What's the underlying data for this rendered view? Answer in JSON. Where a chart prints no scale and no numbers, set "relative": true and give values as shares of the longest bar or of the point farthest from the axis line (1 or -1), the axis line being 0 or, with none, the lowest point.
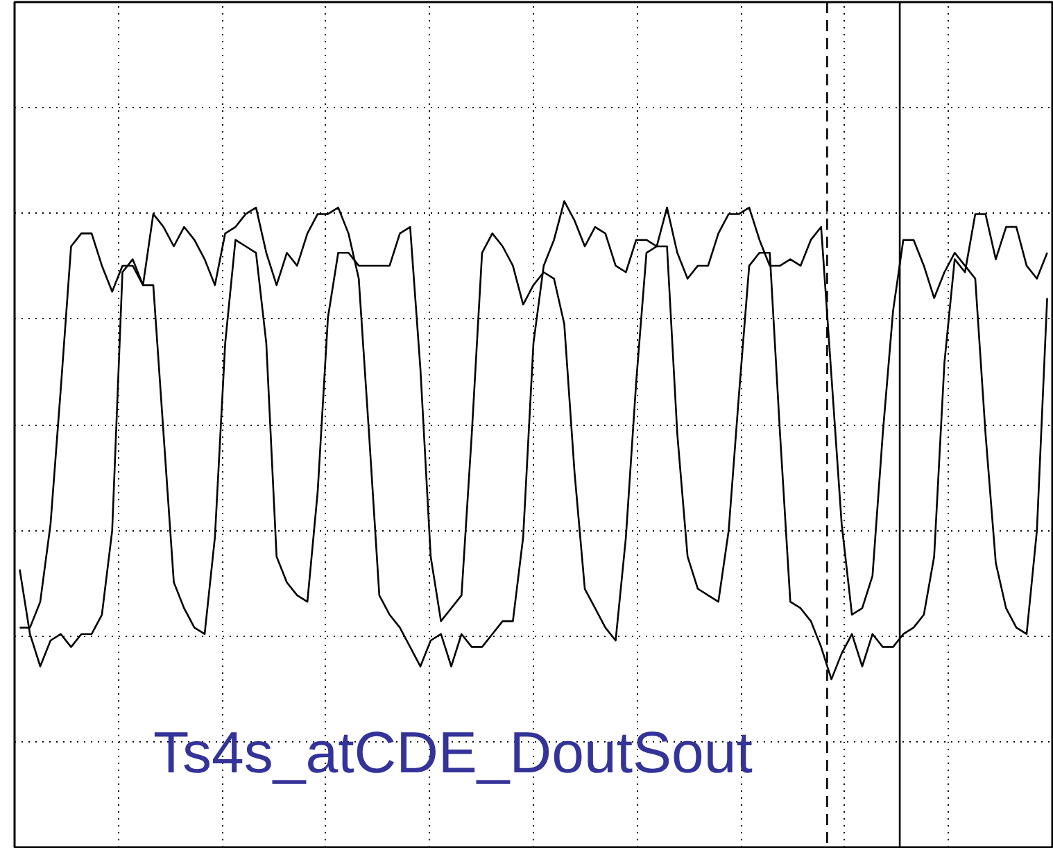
{
  "chart_data": {
    "type": "line",
    "relative": true,
    "grid": true,
    "tick_labels": false,
    "marker": "none",
    "line_style": "solid",
    "categories": [
      null,
      null,
      null,
      null,
      null,
      null,
      null,
      null,
      null,
      null,
      null,
      null,
      null,
      null,
      null,
      null,
      null,
      null,
      null,
      null,
      null,
      null,
      null,
      null,
      null,
      null,
      null,
      null,
      null,
      null,
      null,
      null,
      null,
      null,
      null,
      null,
      null,
      null,
      null,
      null,
      null,
      null,
      null,
      null,
      null,
      null,
      null,
      null,
      null,
      null,
      null,
      null,
      null,
      null,
      null,
      null,
      null,
      null,
      null,
      null,
      null,
      null,
      null,
      null,
      null,
      null,
      null,
      null,
      null,
      null,
      null,
      null,
      null,
      null,
      null,
      null,
      null,
      null,
      null,
      null,
      null,
      null,
      null,
      null,
      null,
      null,
      null,
      null,
      null,
      null,
      null,
      null,
      null,
      null,
      null,
      null,
      null,
      null,
      null,
      null,
      null
    ],
    "annotations": [
      "Ts4s_atCDE_DoutSout"
    ],
    "series": [
      {
        "color": "#000000",
        "values": [
          0.34,
          0.34,
          0.38,
          0.5,
          0.71,
          0.93,
          0.95,
          0.95,
          0.9,
          0.86,
          0.9,
          0.9,
          0.87,
          0.87,
          0.64,
          0.41,
          0.37,
          0.34,
          0.33,
          0.48,
          0.78,
          0.94,
          0.93,
          0.92,
          0.78,
          0.45,
          0.41,
          0.39,
          0.38,
          0.55,
          0.82,
          0.92,
          0.92,
          0.9,
          0.9,
          0.9,
          0.9,
          0.95,
          0.96,
          0.74,
          0.45,
          0.35,
          0.37,
          0.39,
          0.64,
          0.92,
          0.95,
          0.93,
          0.9,
          0.84,
          0.87,
          0.89,
          0.88,
          0.81,
          0.58,
          0.4,
          0.37,
          0.34,
          0.32,
          0.48,
          0.72,
          0.92,
          0.93,
          0.93,
          0.64,
          0.45,
          0.4,
          0.39,
          0.38,
          0.49,
          0.7,
          0.9,
          0.92,
          0.92,
          0.64,
          0.38,
          0.37,
          0.35,
          0.31,
          0.26,
          0.3,
          0.33,
          0.28,
          0.33,
          0.31,
          0.31,
          0.33,
          0.34,
          0.36,
          0.45,
          0.75,
          0.91,
          0.89,
          0.98,
          0.98,
          0.91,
          0.96,
          0.96,
          0.9,
          0.88,
          0.92
        ]
      },
      {
        "color": "#000000",
        "values": [
          0.43,
          0.33,
          0.28,
          0.32,
          0.33,
          0.31,
          0.33,
          0.33,
          0.36,
          0.49,
          0.89,
          0.91,
          0.87,
          0.98,
          0.96,
          0.93,
          0.96,
          0.94,
          0.91,
          0.87,
          0.95,
          0.96,
          0.98,
          0.99,
          0.92,
          0.87,
          0.92,
          0.9,
          0.95,
          0.98,
          0.98,
          0.99,
          0.95,
          0.88,
          0.64,
          0.39,
          0.36,
          0.34,
          0.31,
          0.28,
          0.32,
          0.33,
          0.28,
          0.33,
          0.31,
          0.31,
          0.33,
          0.35,
          0.35,
          0.48,
          0.78,
          0.9,
          0.94,
          1.0,
          0.97,
          0.93,
          0.96,
          0.95,
          0.9,
          0.89,
          0.94,
          0.94,
          0.93,
          0.99,
          0.92,
          0.88,
          0.9,
          0.9,
          0.95,
          0.98,
          0.98,
          0.99,
          0.94,
          0.9,
          0.9,
          0.91,
          0.9,
          0.94,
          0.96,
          0.73,
          0.5,
          0.36,
          0.37,
          0.42,
          0.64,
          0.83,
          0.94,
          0.94,
          0.9,
          0.85,
          0.89,
          0.92,
          0.9,
          0.88,
          0.64,
          0.44,
          0.37,
          0.34,
          0.33,
          0.49,
          0.85
        ]
      }
    ]
  }
}
